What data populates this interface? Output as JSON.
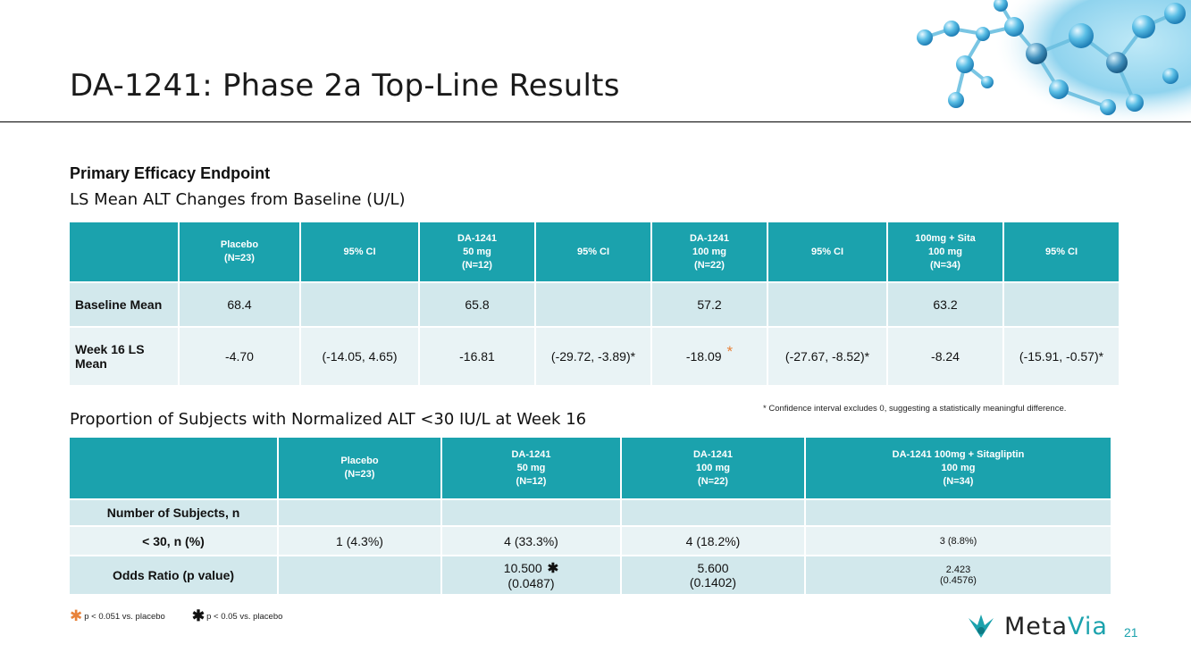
{
  "slide": {
    "title": "DA-1241: Phase 2a Top-Line Results",
    "page_number": "21"
  },
  "section1": {
    "heading": "Primary Efficacy Endpoint",
    "subheading": "LS Mean ALT Changes from Baseline (U/L)",
    "headers": [
      "",
      "Placebo\n(N=23)",
      "95% CI",
      "DA-1241\n50 mg\n(N=12)",
      "95% CI",
      "DA-1241\n100 mg\n(N=22)",
      "95% CI",
      "100mg + Sita\n100 mg\n(N=34)",
      "95% CI"
    ],
    "rows": [
      [
        "Baseline Mean",
        "68.4",
        "",
        "65.8",
        "",
        "57.2",
        "",
        "63.2",
        ""
      ],
      [
        "Week 16 LS Mean",
        "-4.70",
        "(-14.05, 4.65)",
        "-16.81",
        "(-29.72, -3.89)*",
        "-18.09",
        "(-27.67, -8.52)*",
        "-8.24",
        "(-15.91, -0.57)*"
      ]
    ],
    "star_symbol": "*",
    "footnote": "* Confidence interval excludes 0, suggesting a statistically meaningful difference."
  },
  "section2": {
    "subheading": "Proportion of Subjects with Normalized ALT <30 IU/L at Week 16",
    "headers": [
      "",
      "Placebo\n(N=23)",
      "DA-1241\n50 mg\n(N=12)",
      "DA-1241\n100 mg\n(N=22)",
      "DA-1241 100mg + Sitagliptin\n100 mg\n(N=34)"
    ],
    "rows": [
      [
        "Number of Subjects, n",
        "",
        "",
        "",
        ""
      ],
      [
        "< 30, n (%)",
        "1 (4.3%)",
        "4 (33.3%)",
        "4 (18.2%)",
        "3 (8.8%)"
      ],
      [
        "Odds Ratio (p value)",
        "",
        "10.500",
        "5.600",
        "2.423"
      ]
    ],
    "pvalues": [
      "(0.0487)",
      "(0.1402)",
      "(0.4576)"
    ],
    "star_symbol": "✱"
  },
  "legend": {
    "orange_star": "✱",
    "orange_text": "p < 0.051 vs. placebo",
    "black_star": "✱",
    "black_text": "p < 0.05 vs. placebo"
  },
  "logo": {
    "text_a": "Meta",
    "text_b": "Via"
  },
  "colors": {
    "header_teal": "#1ba2ad",
    "row_dark": "#d2e8ec",
    "row_light": "#e9f3f5",
    "accent_orange": "#e8823a"
  }
}
